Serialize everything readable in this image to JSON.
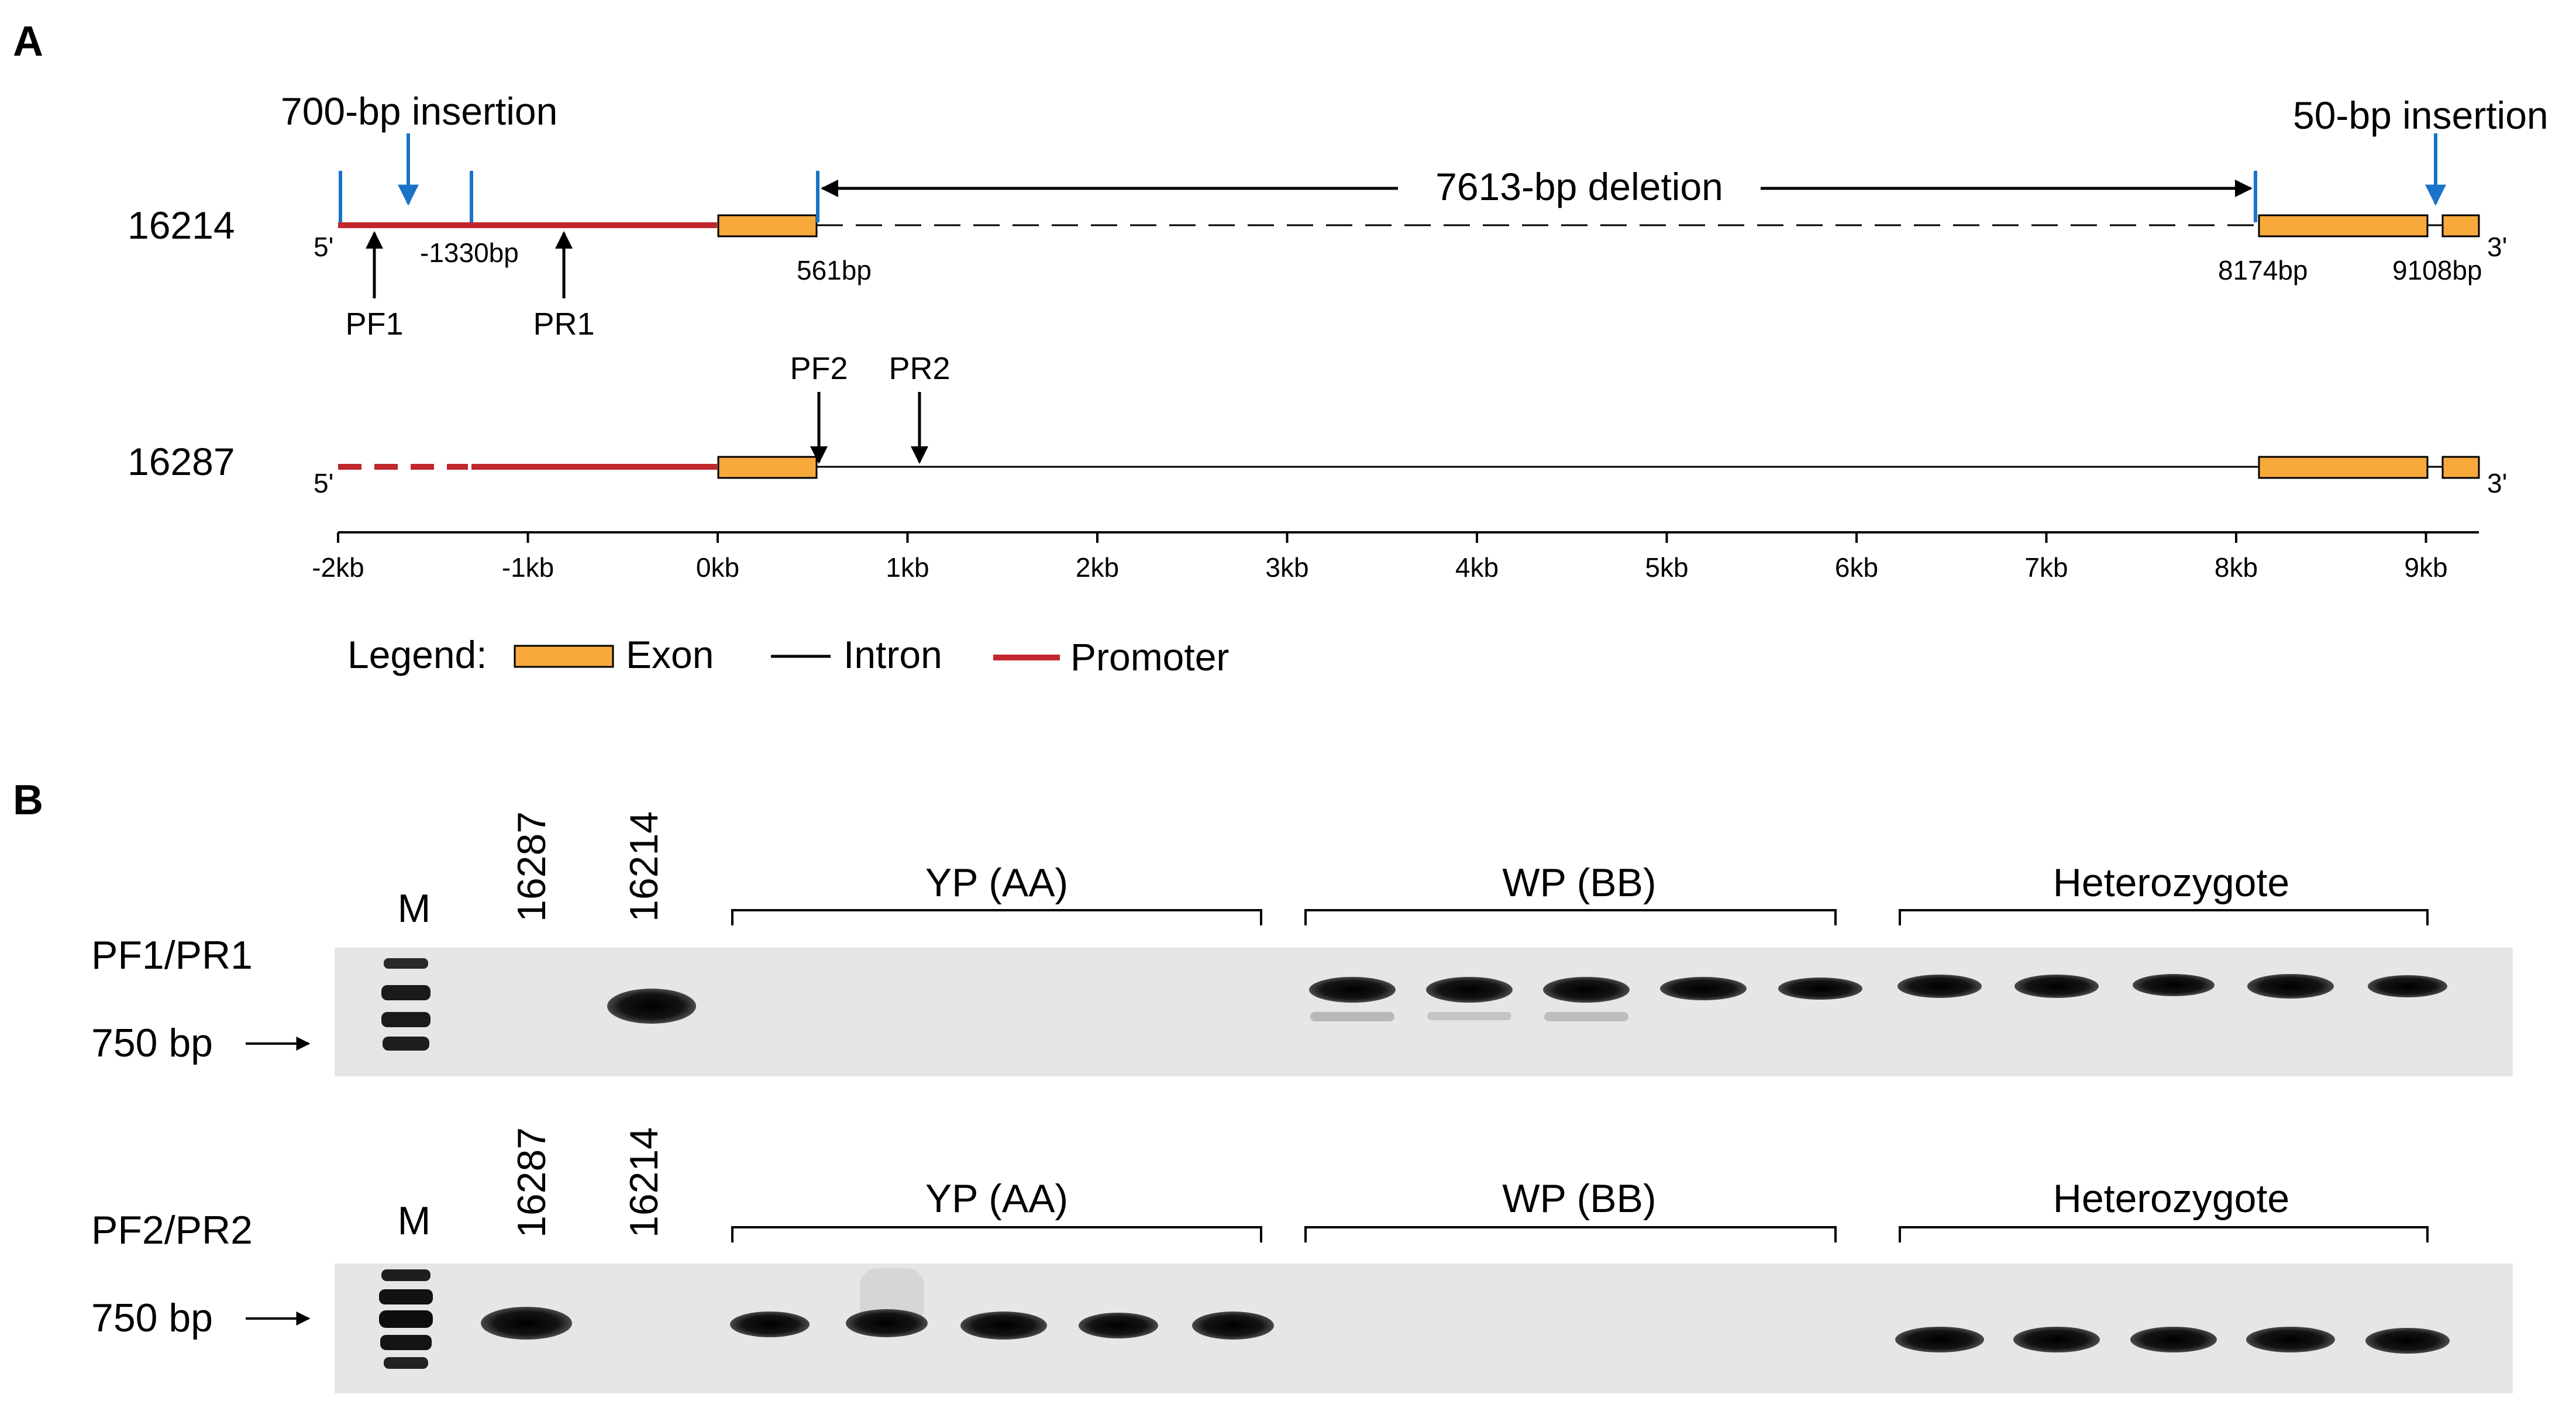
{
  "panel_a": {
    "label": "A",
    "tracks": [
      {
        "name": "16214",
        "five_prime": "5'",
        "three_prime": "3'",
        "insertion_left": "700-bp insertion",
        "insertion_right": "50-bp insertion",
        "deletion": "7613-bp deletion",
        "pos_1330": "-1330bp",
        "pos_561": "561bp",
        "pos_8174": "8174bp",
        "pos_9108": "9108bp",
        "primer_f": "PF1",
        "primer_r": "PR1"
      },
      {
        "name": "16287",
        "five_prime": "5'",
        "three_prime": "3'",
        "primer_f": "PF2",
        "primer_r": "PR2"
      }
    ],
    "axis_ticks": [
      "-2kb",
      "-1kb",
      "0kb",
      "1kb",
      "2kb",
      "3kb",
      "4kb",
      "5kb",
      "6kb",
      "7kb",
      "8kb",
      "9kb"
    ],
    "legend": {
      "title": "Legend:",
      "items": [
        {
          "label": "Exon",
          "color": "#f7a93c"
        },
        {
          "label": "Intron",
          "color": "#000000"
        },
        {
          "label": "Promoter",
          "color": "#c1272d"
        }
      ]
    }
  },
  "panel_b": {
    "label": "B",
    "marker_label": "750 bp",
    "gels": [
      {
        "primer_pair": "PF1/PR1",
        "lanes": [
          "M",
          "16287",
          "16214"
        ],
        "groups": [
          "YP (AA)",
          "WP (BB)",
          "Heterozygote"
        ]
      },
      {
        "primer_pair": "PF2/PR2",
        "lanes": [
          "M",
          "16287",
          "16214"
        ],
        "groups": [
          "YP (AA)",
          "WP (BB)",
          "Heterozygote"
        ]
      }
    ]
  }
}
